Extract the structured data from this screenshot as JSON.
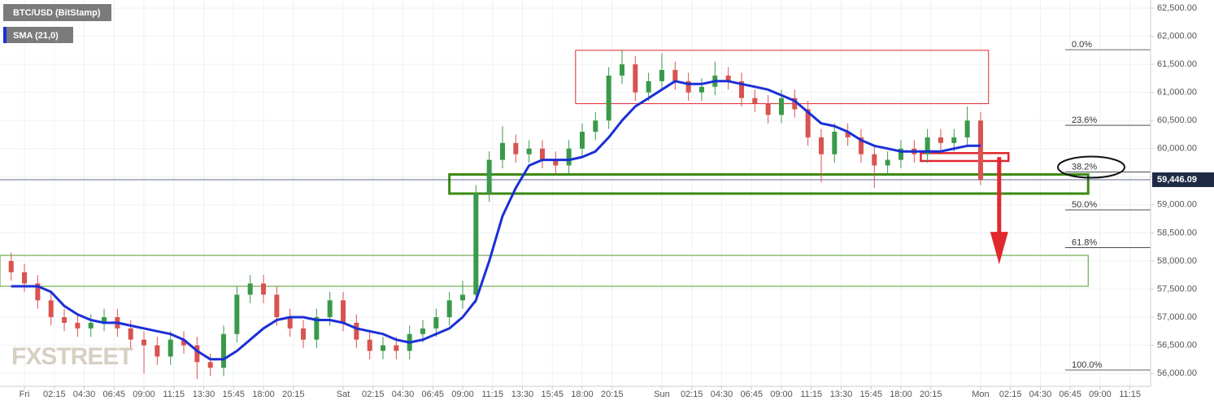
{
  "chart_data": {
    "type": "candlestick",
    "x": [
      -1,
      0,
      1,
      2,
      3,
      4,
      5,
      6,
      7,
      8,
      9,
      10,
      11,
      12,
      13,
      14,
      15,
      16,
      17,
      18,
      19,
      20,
      21,
      22,
      23,
      24,
      25,
      26,
      27,
      28,
      29,
      30,
      31,
      32,
      33,
      34,
      35,
      36,
      37,
      38,
      39,
      40,
      41,
      42,
      43,
      44,
      45,
      46,
      47,
      48,
      49,
      50,
      51,
      52,
      53,
      54,
      55,
      56,
      57,
      58,
      59,
      60,
      61,
      62,
      63,
      64,
      65,
      66,
      67,
      68,
      69,
      70,
      71,
      72
    ],
    "series": [
      {
        "name": "BTC/USD (BitStamp)",
        "type": "candlestick",
        "up_color": "#3a9a4a",
        "down_color": "#d9534f",
        "open": [
          58000,
          57800,
          57600,
          57300,
          57000,
          56900,
          56800,
          56900,
          57000,
          56800,
          56600,
          56500,
          56300,
          56600,
          56500,
          56200,
          56100,
          56700,
          57400,
          57600,
          57400,
          57000,
          56800,
          56600,
          57000,
          57300,
          56900,
          56600,
          56400,
          56500,
          56400,
          56700,
          56800,
          57000,
          57300,
          57400,
          59200,
          59800,
          60100,
          59900,
          60000,
          59800,
          59700,
          60000,
          60300,
          60500,
          61300,
          61500,
          61000,
          61200,
          61400,
          61200,
          61000,
          61100,
          61300,
          61200,
          60900,
          60800,
          60600,
          60900,
          60700,
          60200,
          59900,
          60300,
          60200,
          59900,
          59700,
          59800,
          60000,
          59900,
          60200,
          60100,
          60200,
          60500
        ],
        "high": [
          58150,
          57950,
          57750,
          57450,
          57150,
          57050,
          57050,
          57150,
          57150,
          56950,
          56750,
          56650,
          56750,
          56750,
          56650,
          56350,
          56850,
          57550,
          57750,
          57750,
          57550,
          57150,
          56950,
          57150,
          57450,
          57450,
          57050,
          56750,
          56650,
          56650,
          56850,
          56950,
          57150,
          57450,
          57650,
          59350,
          59950,
          60400,
          60250,
          60150,
          60150,
          59950,
          60150,
          60450,
          60650,
          61450,
          61750,
          61650,
          61350,
          61700,
          61550,
          61350,
          61250,
          61550,
          61450,
          61350,
          61050,
          60950,
          61050,
          61050,
          60850,
          60350,
          60450,
          60450,
          60350,
          60050,
          59950,
          60150,
          60150,
          60350,
          60350,
          60350,
          60750,
          60650
        ],
        "low": [
          57650,
          57450,
          57150,
          56850,
          56750,
          56650,
          56650,
          56750,
          56650,
          56450,
          56000,
          56150,
          56150,
          56350,
          55900,
          55950,
          55950,
          56550,
          57250,
          57250,
          56850,
          56650,
          56450,
          56450,
          56850,
          56750,
          56450,
          56250,
          56250,
          56250,
          56250,
          56550,
          56650,
          56850,
          57150,
          57250,
          59050,
          59650,
          59750,
          59750,
          59650,
          59550,
          59550,
          59850,
          60150,
          60350,
          61150,
          60850,
          60850,
          61050,
          61050,
          60850,
          60850,
          60950,
          61050,
          60750,
          60650,
          60450,
          60450,
          60550,
          60050,
          59400,
          59750,
          60050,
          59750,
          59300,
          59550,
          59650,
          59750,
          59750,
          59950,
          59950,
          60050,
          59350
        ],
        "close": [
          57800,
          57600,
          57300,
          57000,
          56900,
          56800,
          56900,
          57000,
          56800,
          56600,
          56500,
          56300,
          56600,
          56500,
          56200,
          56100,
          56700,
          57400,
          57600,
          57400,
          57000,
          56800,
          56600,
          57000,
          57300,
          56900,
          56600,
          56400,
          56500,
          56400,
          56700,
          56800,
          57000,
          57300,
          57400,
          59200,
          59800,
          60100,
          59900,
          60000,
          59800,
          59700,
          60000,
          60300,
          60500,
          61300,
          61500,
          61000,
          61200,
          61400,
          61200,
          61000,
          61100,
          61300,
          61200,
          60900,
          60800,
          60600,
          60900,
          60700,
          60200,
          59900,
          60300,
          60200,
          59900,
          59700,
          59800,
          60000,
          59900,
          60200,
          60100,
          60200,
          60500,
          59450
        ]
      },
      {
        "name": "SMA (21,0)",
        "type": "line",
        "color": "#1b2fd6",
        "values": [
          57550,
          57550,
          57550,
          57450,
          57200,
          57050,
          56950,
          56900,
          56900,
          56850,
          56800,
          56750,
          56700,
          56600,
          56400,
          56250,
          56250,
          56400,
          56600,
          56800,
          56950,
          57000,
          57000,
          56950,
          56950,
          56900,
          56800,
          56750,
          56700,
          56600,
          56550,
          56600,
          56700,
          56800,
          57000,
          57300,
          58000,
          58800,
          59300,
          59700,
          59800,
          59800,
          59800,
          59850,
          59950,
          60200,
          60500,
          60750,
          60900,
          61050,
          61200,
          61150,
          61150,
          61200,
          61200,
          61150,
          61100,
          61050,
          60950,
          60850,
          60650,
          60450,
          60400,
          60300,
          60150,
          60050,
          60000,
          59950,
          59950,
          59950,
          59950,
          60000,
          60050,
          60050
        ]
      }
    ],
    "xlim": [
      -1.84,
      84.8
    ],
    "ylim": [
      55770,
      62645
    ],
    "xticks": [
      {
        "value": 0,
        "label": "Fri"
      },
      {
        "value": 2.25,
        "label": "02:15"
      },
      {
        "value": 4.5,
        "label": "04:30"
      },
      {
        "value": 6.75,
        "label": "06:45"
      },
      {
        "value": 9,
        "label": "09:00"
      },
      {
        "value": 11.25,
        "label": "11:15"
      },
      {
        "value": 13.5,
        "label": "13:30"
      },
      {
        "value": 15.75,
        "label": "15:45"
      },
      {
        "value": 18,
        "label": "18:00"
      },
      {
        "value": 20.25,
        "label": "20:15"
      },
      {
        "value": 24,
        "label": "Sat"
      },
      {
        "value": 26.25,
        "label": "02:15"
      },
      {
        "value": 28.5,
        "label": "04:30"
      },
      {
        "value": 30.75,
        "label": "06:45"
      },
      {
        "value": 33,
        "label": "09:00"
      },
      {
        "value": 35.25,
        "label": "11:15"
      },
      {
        "value": 37.5,
        "label": "13:30"
      },
      {
        "value": 39.75,
        "label": "15:45"
      },
      {
        "value": 42,
        "label": "18:00"
      },
      {
        "value": 44.25,
        "label": "20:15"
      },
      {
        "value": 48,
        "label": "Sun"
      },
      {
        "value": 50.25,
        "label": "02:15"
      },
      {
        "value": 52.5,
        "label": "04:30"
      },
      {
        "value": 54.75,
        "label": "06:45"
      },
      {
        "value": 57,
        "label": "09:00"
      },
      {
        "value": 59.25,
        "label": "11:15"
      },
      {
        "value": 61.5,
        "label": "13:30"
      },
      {
        "value": 63.75,
        "label": "15:45"
      },
      {
        "value": 66,
        "label": "18:00"
      },
      {
        "value": 68.25,
        "label": "20:15"
      },
      {
        "value": 72,
        "label": "Mon"
      },
      {
        "value": 74.25,
        "label": "02:15"
      },
      {
        "value": 76.5,
        "label": "04:30"
      },
      {
        "value": 78.75,
        "label": "06:45"
      },
      {
        "value": 81,
        "label": "09:00"
      },
      {
        "value": 83.25,
        "label": "11:15"
      }
    ],
    "yticks": [
      {
        "value": 56000,
        "label": "56,000.00"
      },
      {
        "value": 56500,
        "label": "56,500.00"
      },
      {
        "value": 57000,
        "label": "57,000.00"
      },
      {
        "value": 57500,
        "label": "57,500.00"
      },
      {
        "value": 58000,
        "label": "58,000.00"
      },
      {
        "value": 58500,
        "label": "58,500.00"
      },
      {
        "value": 59000,
        "label": "59,000.00"
      },
      {
        "value": 59500,
        "label": "59,500.00"
      },
      {
        "value": 60000,
        "label": "60,000.00"
      },
      {
        "value": 60500,
        "label": "60,500.00"
      },
      {
        "value": 61000,
        "label": "61,000.00"
      },
      {
        "value": 61500,
        "label": "61,500.00"
      },
      {
        "value": 62000,
        "label": "62,000.00"
      },
      {
        "value": 62500,
        "label": "62,500.00"
      }
    ],
    "grid": true,
    "last_price": {
      "value": 59446.09,
      "label": "59,446.09"
    },
    "fib_levels": [
      {
        "label": "0.0%",
        "price": 61760
      },
      {
        "label": "23.6%",
        "price": 60415
      },
      {
        "label": "38.2%",
        "price": 59583
      },
      {
        "label": "50.0%",
        "price": 58910
      },
      {
        "label": "61.8%",
        "price": 58237
      },
      {
        "label": "100.0%",
        "price": 56060
      }
    ],
    "zones": [
      {
        "color": "#e0282e",
        "line_width": 1,
        "xlim": [
          41.5,
          72.6
        ],
        "ylim": [
          60800,
          61750
        ]
      },
      {
        "color": "#3c8a14",
        "line_width": 3,
        "xlim": [
          32.0,
          80.1
        ],
        "ylim": [
          59200,
          59540
        ]
      },
      {
        "color": "#4f9a2a",
        "line_width": 1,
        "xlim": [
          -1.84,
          80.1
        ],
        "ylim": [
          57550,
          58100
        ]
      },
      {
        "color": "#e0282e",
        "line_width": 2.5,
        "xlim": [
          67.5,
          74.1
        ],
        "ylim": [
          59780,
          59920
        ]
      }
    ],
    "arrow": {
      "color": "#e0282e",
      "x": 73.4,
      "from": 59850,
      "to": 57940
    },
    "watermark": "FXSTREET"
  }
}
